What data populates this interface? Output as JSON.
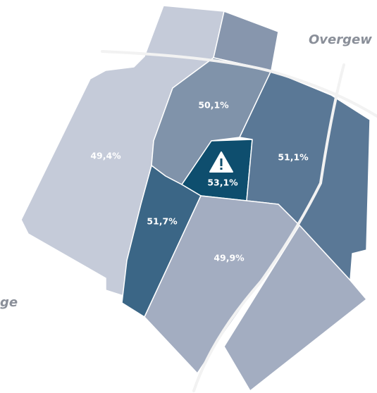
{
  "map": {
    "places": [
      "Overgew",
      "ge"
    ],
    "regions": [
      {
        "label": "49,4%"
      },
      {
        "label": "50,1%"
      },
      {
        "label": "53,1%"
      },
      {
        "label": "51,1%"
      },
      {
        "label": "51,7%"
      },
      {
        "label": "49,9%"
      }
    ]
  }
}
